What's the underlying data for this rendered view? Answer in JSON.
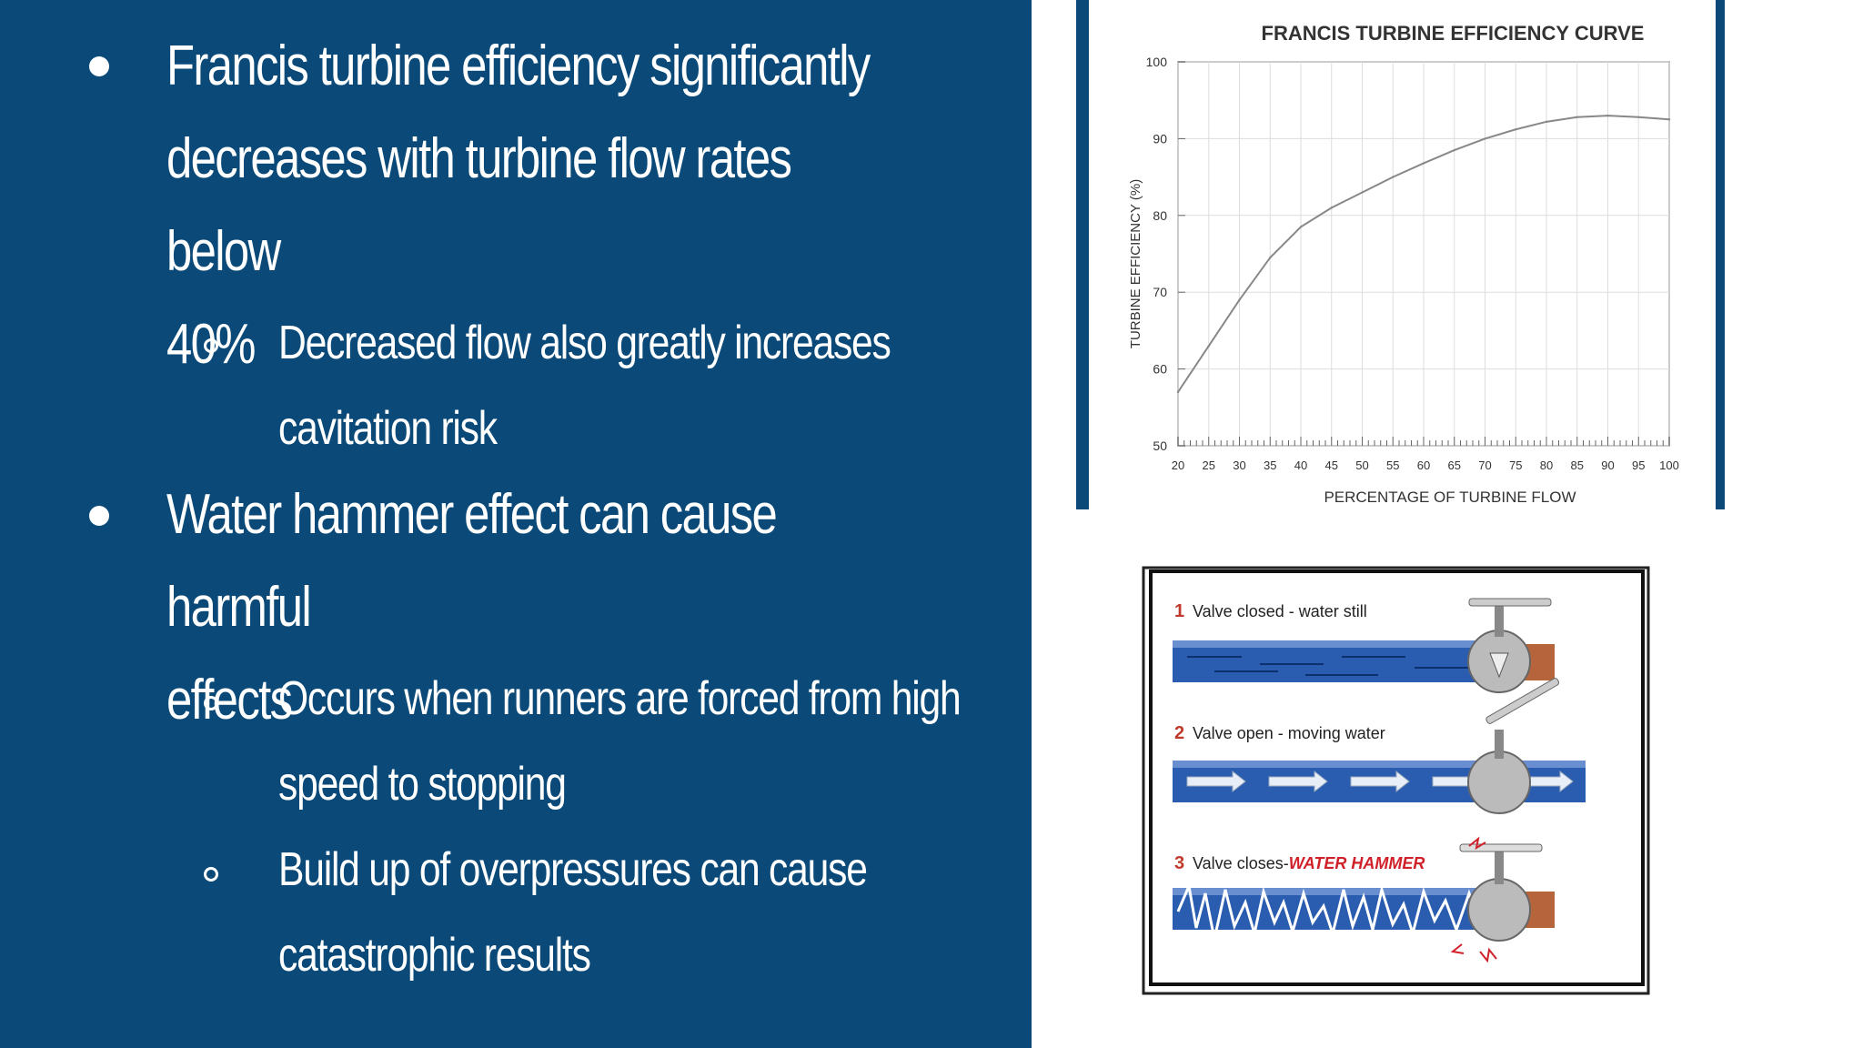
{
  "bullets": {
    "b1": {
      "line1": "Francis turbine efficiency significantly",
      "line2": "decreases with turbine flow rates below",
      "line3": "40%"
    },
    "b1_sub": {
      "line1": "Decreased flow also greatly increases",
      "line2": "cavitation risk"
    },
    "b2": {
      "line1": "Water hammer effect can cause harmful",
      "line2": "effects"
    },
    "b2_sub1": {
      "line1": " Occurs when runners are forced from high",
      "line2": "speed to stopping"
    },
    "b2_sub2": {
      "line1": "Build up of overpressures can cause",
      "line2": "catastrophic results"
    }
  },
  "chart_data": {
    "type": "line",
    "title": "FRANCIS TURBINE EFFICIENCY CURVE",
    "xlabel": "PERCENTAGE OF TURBINE FLOW",
    "ylabel": "TURBINE EFFICIENCY (%)",
    "xlim": [
      20,
      100
    ],
    "ylim": [
      50,
      100
    ],
    "xticks": [
      20,
      25,
      30,
      35,
      40,
      45,
      50,
      55,
      60,
      65,
      70,
      75,
      80,
      85,
      90,
      95,
      100
    ],
    "yticks": [
      50,
      60,
      70,
      80,
      90,
      100
    ],
    "grid": true,
    "series": [
      {
        "name": "Efficiency",
        "x": [
          20,
          25,
          30,
          35,
          40,
          45,
          50,
          55,
          60,
          65,
          70,
          75,
          80,
          85,
          90,
          95,
          100
        ],
        "y": [
          57,
          63,
          69,
          74.5,
          78.5,
          81,
          83,
          85,
          86.8,
          88.5,
          90,
          91.2,
          92.2,
          92.8,
          93,
          92.8,
          92.5
        ]
      }
    ]
  },
  "hammer": {
    "panel1": {
      "num": "1",
      "label": "Valve closed - water still"
    },
    "panel2": {
      "num": "2",
      "label": "Valve open - moving water"
    },
    "panel3": {
      "num": "3",
      "label": "Valve closes-",
      "highlight": "WATER HAMMER"
    },
    "colors": {
      "pipe": "#2a5db0",
      "valve_end": "#b5643c",
      "highlight": "#d0202a"
    }
  }
}
